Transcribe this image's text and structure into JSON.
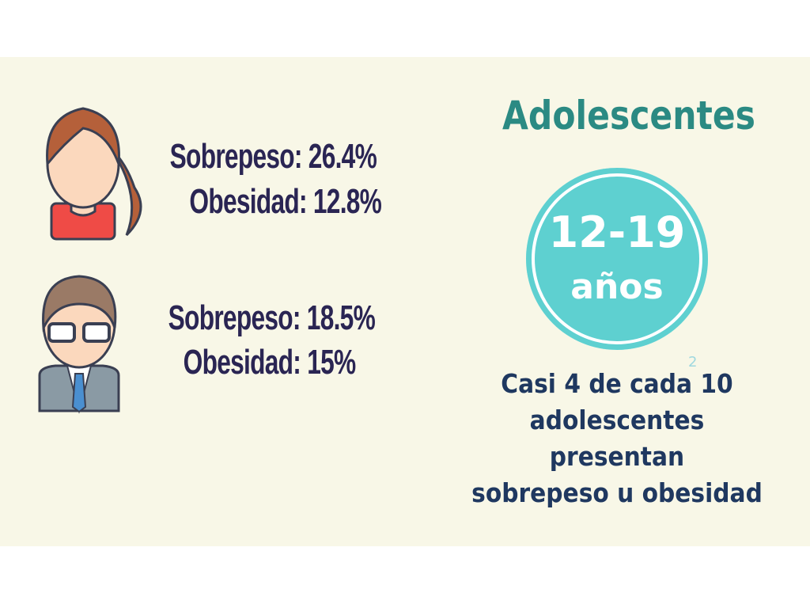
{
  "groups": [
    {
      "lines": [
        "Sobrepeso: 26.4%",
        "Obesidad: 12.8%"
      ]
    },
    {
      "lines": [
        "Sobrepeso: 18.5%",
        "Obesidad: 15%"
      ]
    }
  ],
  "title": "Adolescentes",
  "badge": {
    "range": "12-19",
    "unit": "años"
  },
  "footnote_mark": "2",
  "caption": [
    "Casi 4 de cada 10",
    "adolescentes presentan",
    "sobrepeso u obesidad"
  ]
}
